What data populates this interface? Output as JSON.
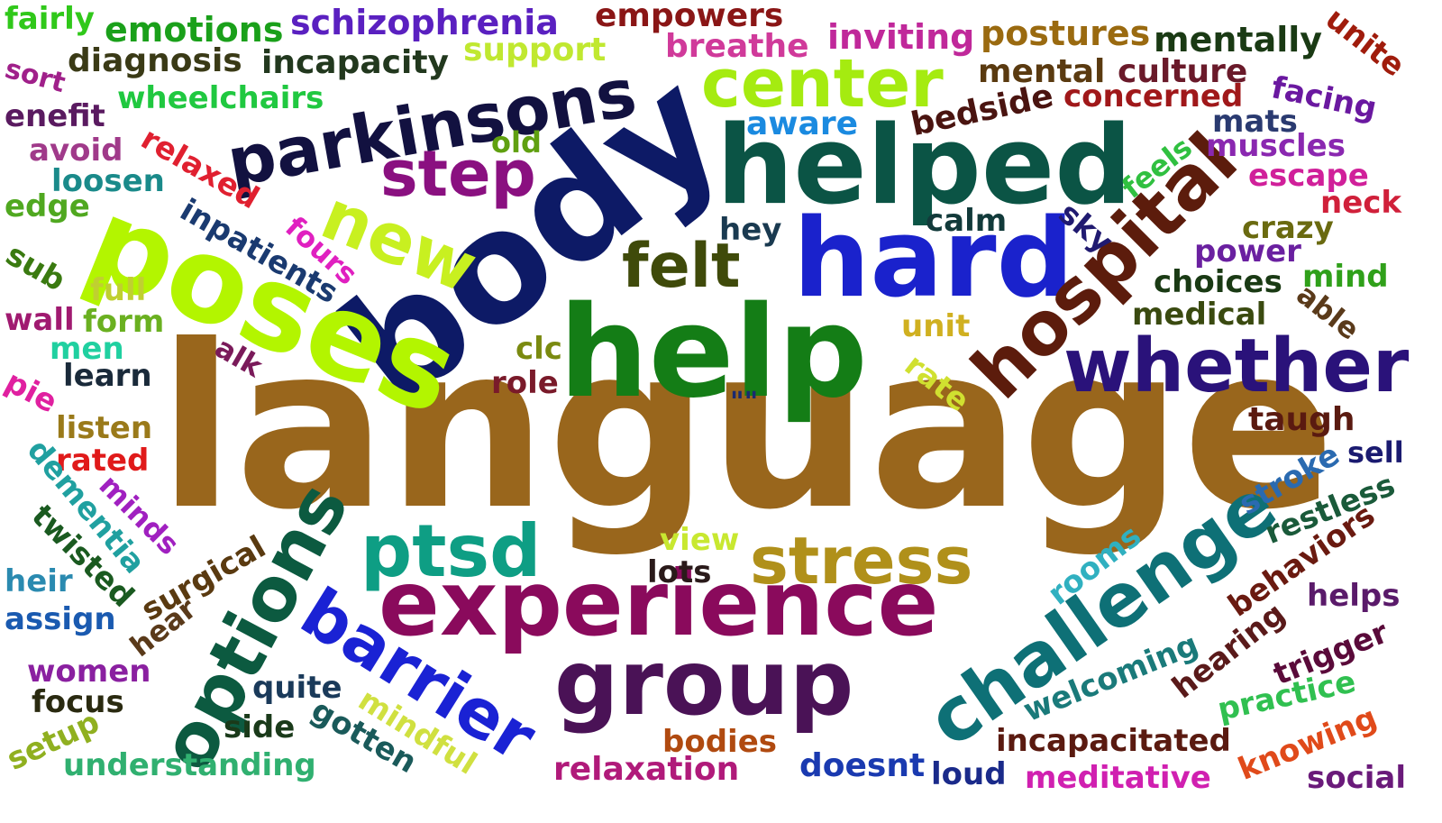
{
  "words": [
    {
      "text": "language",
      "color": "#99661c"
    },
    {
      "text": "body",
      "color": "#0d1a66"
    },
    {
      "text": "help",
      "color": "#147d16"
    },
    {
      "text": "poses",
      "color": "#b3f500"
    },
    {
      "text": "helped",
      "color": "#0b5445"
    },
    {
      "text": "hard",
      "color": "#1a22cc"
    },
    {
      "text": "experience",
      "color": "#8a0a5c"
    },
    {
      "text": "group",
      "color": "#4a1256"
    },
    {
      "text": "parkinsons",
      "color": "#121140"
    },
    {
      "text": "hospital",
      "color": "#5c1c0c"
    },
    {
      "text": "options",
      "color": "#0c5a40"
    },
    {
      "text": "challenge",
      "color": "#0e7076"
    },
    {
      "text": "whether",
      "color": "#2a127a"
    },
    {
      "text": "center",
      "color": "#a5eb10"
    },
    {
      "text": "barrier",
      "color": "#1a22d4"
    },
    {
      "text": "ptsd",
      "color": "#0e9e84"
    },
    {
      "text": "stress",
      "color": "#b0901a"
    },
    {
      "text": "step",
      "color": "#8a1080"
    },
    {
      "text": "new",
      "color": "#c8f020"
    },
    {
      "text": "felt",
      "color": "#3f4a0a"
    },
    {
      "text": "fairly",
      "color": "#30c81a"
    },
    {
      "text": "emotions",
      "color": "#1aa01a"
    },
    {
      "text": "schizophrenia",
      "color": "#5a20c0"
    },
    {
      "text": "empowers",
      "color": "#8a1616"
    },
    {
      "text": "inviting",
      "color": "#c0289a"
    },
    {
      "text": "postures",
      "color": "#9a6a10"
    },
    {
      "text": "mentally",
      "color": "#1a3a14"
    },
    {
      "text": "unite",
      "color": "#a01c0c"
    },
    {
      "text": "diagnosis",
      "color": "#3a3a16"
    },
    {
      "text": "incapacity",
      "color": "#22381e"
    },
    {
      "text": "support",
      "color": "#c0e830"
    },
    {
      "text": "breathe",
      "color": "#d03a9a"
    },
    {
      "text": "mental",
      "color": "#5a3a10"
    },
    {
      "text": "culture",
      "color": "#6a1a2a"
    },
    {
      "text": "sort",
      "color": "#a0208a"
    },
    {
      "text": "wheelchairs",
      "color": "#20c840"
    },
    {
      "text": "concerned",
      "color": "#a0181a"
    },
    {
      "text": "facing",
      "color": "#6a18a0"
    },
    {
      "text": "enefit",
      "color": "#5a1a60"
    },
    {
      "text": "aware",
      "color": "#1a8ae0"
    },
    {
      "text": "bedside",
      "color": "#4a1410"
    },
    {
      "text": "mats",
      "color": "#2a3a70"
    },
    {
      "text": "muscles",
      "color": "#8a28b0"
    },
    {
      "text": "avoid",
      "color": "#a03a8a"
    },
    {
      "text": "relaxed",
      "color": "#e02030"
    },
    {
      "text": "old",
      "color": "#60a010"
    },
    {
      "text": "feels",
      "color": "#30c040"
    },
    {
      "text": "escape",
      "color": "#d0209a"
    },
    {
      "text": "loosen",
      "color": "#1a8a8a"
    },
    {
      "text": "neck",
      "color": "#d0203a"
    },
    {
      "text": "edge",
      "color": "#50a820"
    },
    {
      "text": "inpatients",
      "color": "#1a3a70"
    },
    {
      "text": "hey",
      "color": "#1a3a50"
    },
    {
      "text": "calm",
      "color": "#123a3a"
    },
    {
      "text": "sky",
      "color": "#201a70"
    },
    {
      "text": "crazy",
      "color": "#6a6a10"
    },
    {
      "text": "fours",
      "color": "#e020c0"
    },
    {
      "text": "power",
      "color": "#6a20a0"
    },
    {
      "text": "sub",
      "color": "#3a7a10"
    },
    {
      "text": "full",
      "color": "#c0d030"
    },
    {
      "text": "mind",
      "color": "#30a01a"
    },
    {
      "text": "choices",
      "color": "#1a3a14"
    },
    {
      "text": "wall",
      "color": "#a01a70"
    },
    {
      "text": "form",
      "color": "#6ab020"
    },
    {
      "text": "medical",
      "color": "#3a4a10"
    },
    {
      "text": "able",
      "color": "#5a3a1a"
    },
    {
      "text": "unit",
      "color": "#d0b020"
    },
    {
      "text": "men",
      "color": "#20d0a0"
    },
    {
      "text": "alk",
      "color": "#7a1a5a"
    },
    {
      "text": "clc",
      "color": "#7a8a10"
    },
    {
      "text": "learn",
      "color": "#1a2a3a"
    },
    {
      "text": "rate",
      "color": "#d0e030"
    },
    {
      "text": "pie",
      "color": "#e020a0"
    },
    {
      "text": "role",
      "color": "#7a1a2a"
    },
    {
      "text": "\"\"",
      "color": "#1a2a70"
    },
    {
      "text": "listen",
      "color": "#9a7a1a"
    },
    {
      "text": "taugh",
      "color": "#5a1a10"
    },
    {
      "text": "rated",
      "color": "#e01a1a"
    },
    {
      "text": "sell",
      "color": "#1a1a70"
    },
    {
      "text": "dementia",
      "color": "#20a0a0"
    },
    {
      "text": "stroke",
      "color": "#2a6ab0"
    },
    {
      "text": "restless",
      "color": "#1a5a3a"
    },
    {
      "text": "minds",
      "color": "#a020c0"
    },
    {
      "text": "twisted",
      "color": "#1a5a20"
    },
    {
      "text": "view",
      "color": "#c8e830"
    },
    {
      "text": "behaviors",
      "color": "#6a1a10"
    },
    {
      "text": "surgical",
      "color": "#5a3a10"
    },
    {
      "text": "lots",
      "color": "#2a1a1a"
    },
    {
      "text": "rooms",
      "color": "#30b0c0"
    },
    {
      "text": "heir",
      "color": "#2a8ab0"
    },
    {
      "text": "hear",
      "color": "#5a3a1a"
    },
    {
      "text": "helps",
      "color": "#5a1a6a"
    },
    {
      "text": "assign",
      "color": "#1a5ab0"
    },
    {
      "text": "hearing",
      "color": "#5a1a1a"
    },
    {
      "text": "trigger",
      "color": "#5a0a3a"
    },
    {
      "text": "women",
      "color": "#8a20a0"
    },
    {
      "text": "quite",
      "color": "#1a3a5a"
    },
    {
      "text": "welcoming",
      "color": "#1a7a7a"
    },
    {
      "text": "focus",
      "color": "#2a2a10"
    },
    {
      "text": "mindful",
      "color": "#d0e040"
    },
    {
      "text": "practice",
      "color": "#30c050"
    },
    {
      "text": "setup",
      "color": "#90b020"
    },
    {
      "text": "side",
      "color": "#1a3a1a"
    },
    {
      "text": "gotten",
      "color": "#1a5a5a"
    },
    {
      "text": "bodies",
      "color": "#b04a10"
    },
    {
      "text": "incapacitated",
      "color": "#5a1a10"
    },
    {
      "text": "knowing",
      "color": "#e04a1a"
    },
    {
      "text": "understanding",
      "color": "#30b070"
    },
    {
      "text": "relaxation",
      "color": "#b01a7a"
    },
    {
      "text": "doesnt",
      "color": "#1a3ab0"
    },
    {
      "text": "loud",
      "color": "#1a2a8a"
    },
    {
      "text": "meditative",
      "color": "#d020b0"
    },
    {
      "text": "social",
      "color": "#6a1a7a"
    }
  ]
}
